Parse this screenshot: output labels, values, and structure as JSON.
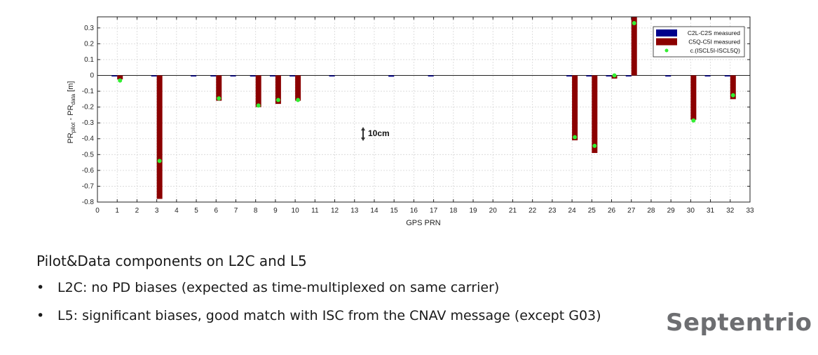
{
  "chart_data": {
    "type": "bar",
    "xlabel": "GPS PRN",
    "ylabel": {
      "base": "PR",
      "sub1": "pilot",
      "mid": " - PR",
      "sub2": "data",
      "unit": " [m]"
    },
    "xlim": [
      0,
      33
    ],
    "ylim": [
      -0.8,
      0.37
    ],
    "xticks": [
      "0",
      "1",
      "2",
      "3",
      "4",
      "5",
      "6",
      "7",
      "8",
      "9",
      "10",
      "11",
      "12",
      "13",
      "14",
      "15",
      "16",
      "17",
      "18",
      "19",
      "20",
      "21",
      "22",
      "23",
      "24",
      "25",
      "26",
      "27",
      "28",
      "29",
      "30",
      "31",
      "32",
      "33"
    ],
    "yticks": [
      "0.3",
      "0.2",
      "0.1",
      "0",
      "-0.1",
      "-0.2",
      "-0.3",
      "-0.4",
      "-0.5",
      "-0.6",
      "-0.7",
      "-0.8"
    ],
    "ytick_values": [
      0.3,
      0.2,
      0.1,
      0,
      -0.1,
      -0.2,
      -0.3,
      -0.4,
      -0.5,
      -0.6,
      -0.7,
      -0.8
    ],
    "grid": true,
    "legend_position": "top-right",
    "colors": {
      "c2l": "#00008b",
      "c5q": "#8b0000",
      "isc": "#33ee33"
    },
    "series": [
      {
        "name": "C2L-C2S measured",
        "kind": "bar",
        "x": [
          1,
          3,
          5,
          6,
          7,
          8,
          9,
          10,
          12,
          15,
          17,
          24,
          25,
          26,
          27,
          29,
          31,
          32
        ],
        "values": [
          -0.005,
          -0.005,
          -0.005,
          -0.005,
          -0.005,
          -0.007,
          -0.006,
          -0.005,
          -0.005,
          -0.008,
          -0.005,
          -0.005,
          -0.005,
          -0.005,
          -0.005,
          -0.007,
          -0.005,
          -0.004
        ]
      },
      {
        "name": "C5Q-C5I measured",
        "kind": "bar",
        "x": [
          1,
          3,
          6,
          8,
          9,
          10,
          24,
          25,
          26,
          27,
          30,
          32
        ],
        "values": [
          -0.025,
          -0.78,
          -0.16,
          -0.2,
          -0.18,
          -0.16,
          -0.41,
          -0.49,
          -0.02,
          0.37,
          -0.28,
          -0.15
        ]
      },
      {
        "name": "c.(ISCL5I-ISCL5Q)",
        "kind": "point",
        "x": [
          1,
          3,
          6,
          8,
          9,
          10,
          24,
          25,
          26,
          27,
          30,
          32
        ],
        "values": [
          -0.032,
          -0.54,
          -0.145,
          -0.19,
          -0.155,
          -0.155,
          -0.39,
          -0.445,
          0.0,
          0.33,
          -0.285,
          -0.125
        ]
      }
    ],
    "annotation": "10cm"
  },
  "slide": {
    "heading": "Pilot&Data components on L2C and L5",
    "bullets": [
      "L2C: no PD biases (expected as time-multiplexed on same carrier)",
      "L5: significant biases, good match with ISC from the CNAV message (except G03)"
    ],
    "bullet_symbol": "•",
    "brand": "Septentrio"
  }
}
